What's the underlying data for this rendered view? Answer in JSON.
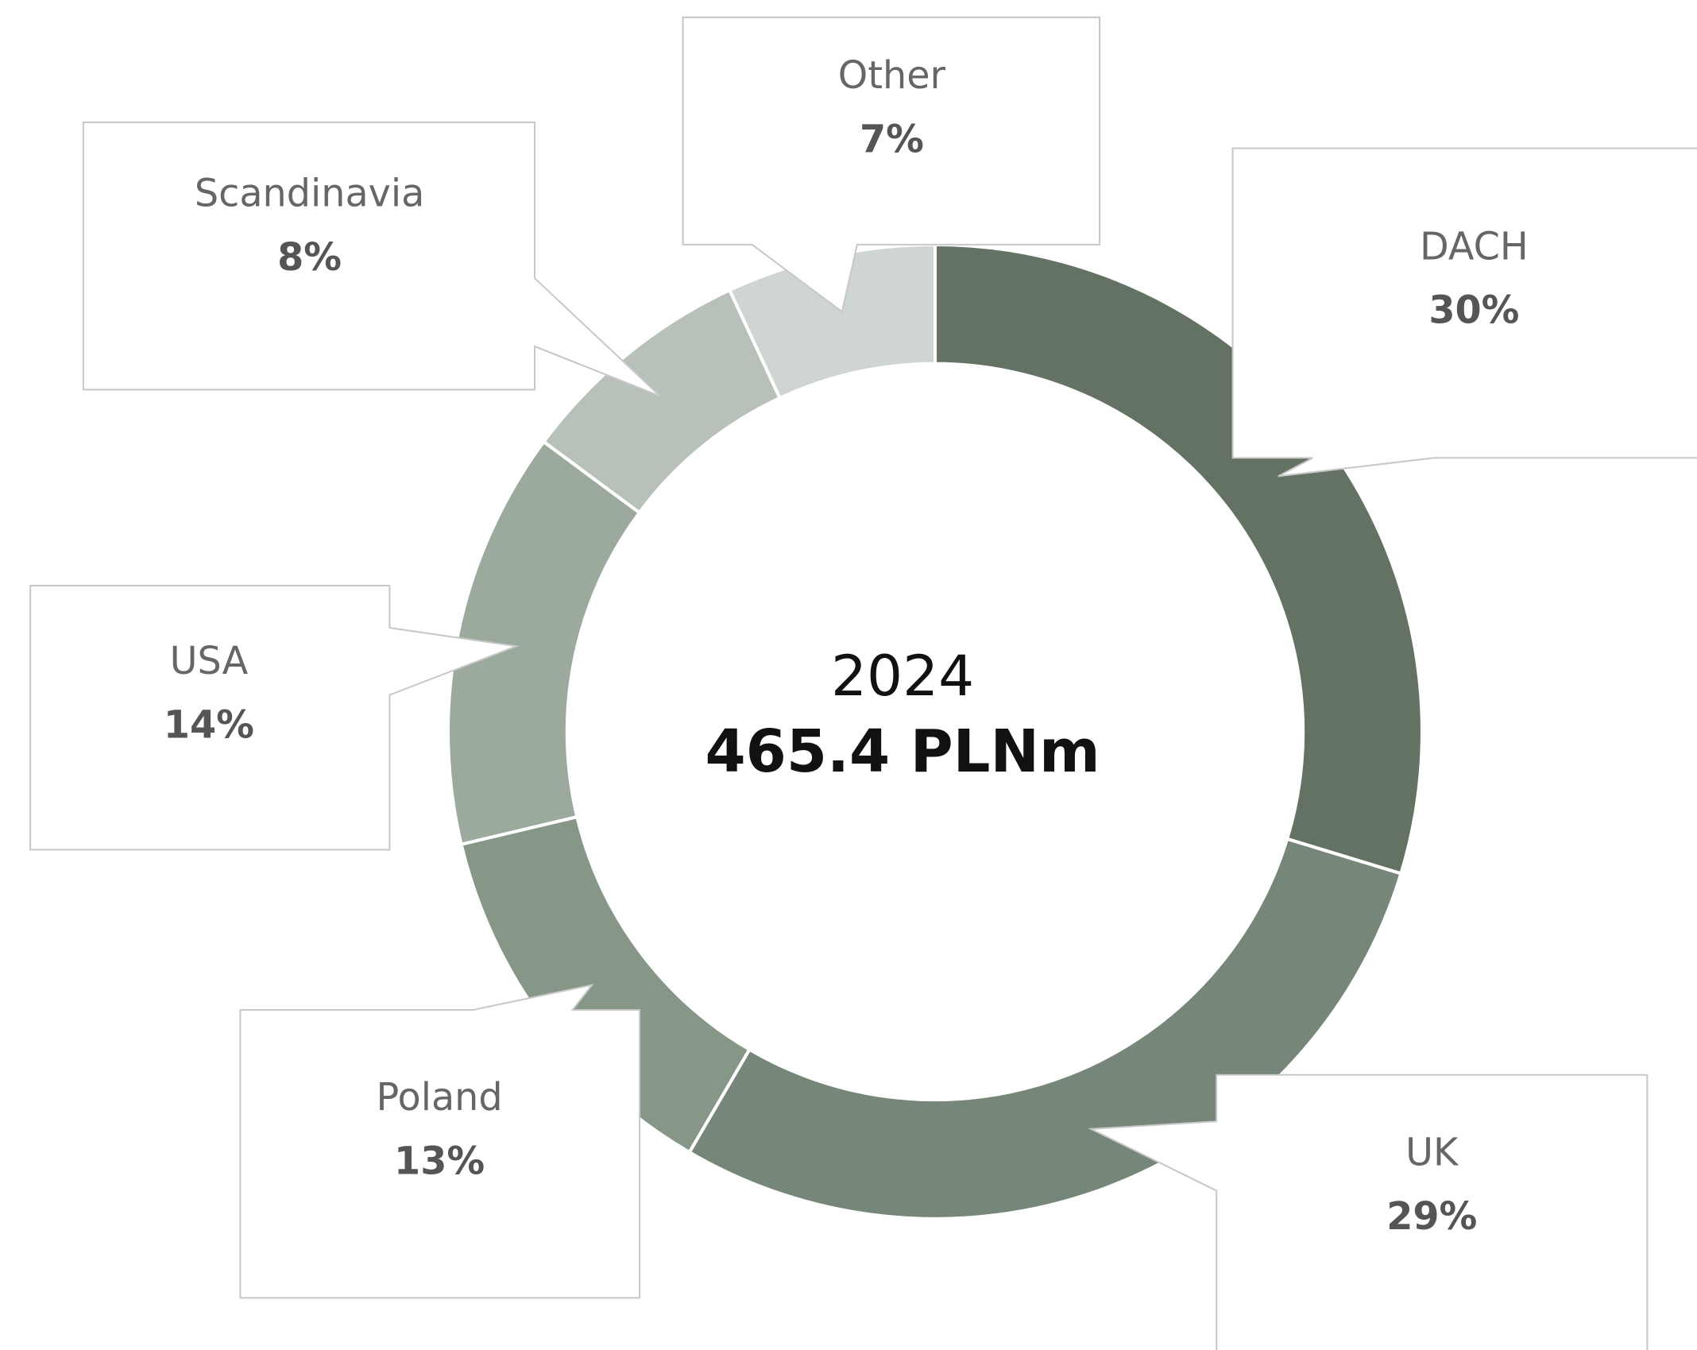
{
  "chart_data": {
    "type": "donut",
    "center_title": "2024",
    "center_subtitle": "465.4 PLNm",
    "categories": [
      "DACH",
      "UK",
      "Poland",
      "USA",
      "Scandinavia",
      "Other"
    ],
    "values": [
      30,
      29,
      13,
      14,
      8,
      7
    ],
    "value_labels": [
      "30%",
      "29%",
      "13%",
      "14%",
      "8%",
      "7%"
    ],
    "colors": [
      "#647264",
      "#768678",
      "#869788",
      "#9caa9e",
      "#b8c1b9",
      "#cfd5d1"
    ]
  }
}
